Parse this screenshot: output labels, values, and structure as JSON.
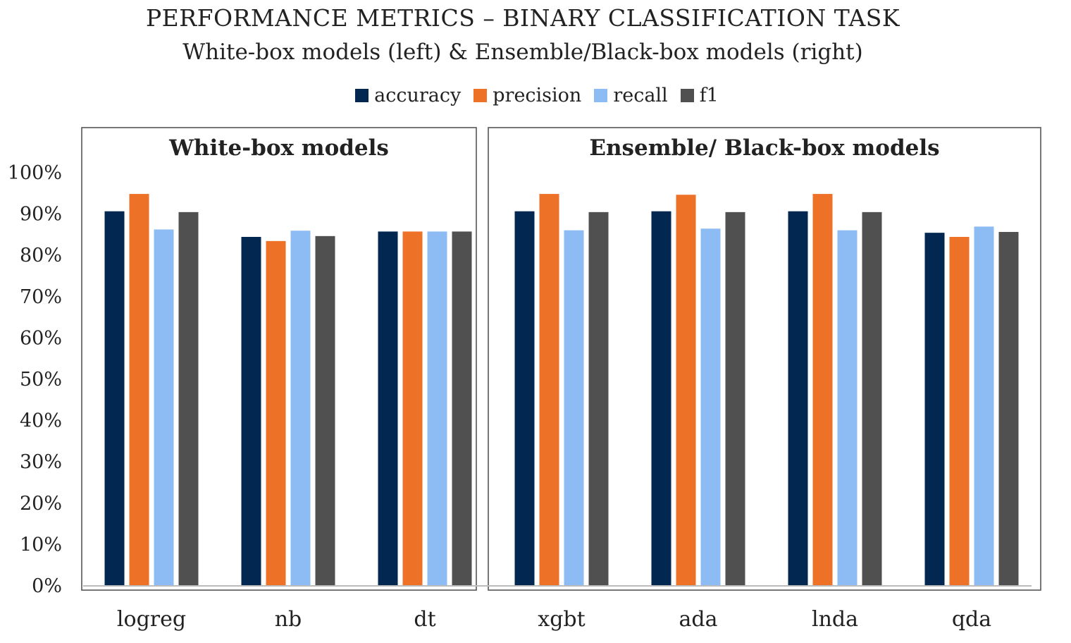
{
  "chart_data": {
    "type": "bar",
    "title": "PERFORMANCE METRICS – BINARY CLASSIFICATION TASK",
    "subtitle": "White-box models (left) & Ensemble/Black-box models (right)",
    "categories": [
      "logreg",
      "nb",
      "dt",
      "xgbt",
      "ada",
      "lnda",
      "qda"
    ],
    "groups": [
      {
        "title": "White-box models",
        "categories": [
          "logreg",
          "nb",
          "dt"
        ]
      },
      {
        "title": "Ensemble/ Black-box models",
        "categories": [
          "xgbt",
          "ada",
          "lnda",
          "qda"
        ]
      }
    ],
    "series": [
      {
        "name": "accuracy",
        "color": "#022852",
        "values": [
          0.905,
          0.843,
          0.856,
          0.905,
          0.905,
          0.905,
          0.853
        ]
      },
      {
        "name": "precision",
        "color": "#ee7128",
        "values": [
          0.947,
          0.833,
          0.856,
          0.947,
          0.945,
          0.947,
          0.843
        ]
      },
      {
        "name": "recall",
        "color": "#8dbcf5",
        "values": [
          0.861,
          0.858,
          0.856,
          0.859,
          0.863,
          0.859,
          0.868
        ]
      },
      {
        "name": "f1",
        "color": "#505050",
        "values": [
          0.903,
          0.845,
          0.856,
          0.903,
          0.903,
          0.903,
          0.855
        ]
      }
    ],
    "ylim": [
      0,
      1.0
    ],
    "yticks": [
      "0%",
      "10%",
      "20%",
      "30%",
      "40%",
      "50%",
      "60%",
      "70%",
      "80%",
      "90%",
      "100%"
    ],
    "xlabel": "",
    "ylabel": "",
    "legend": "top-center",
    "grid": false
  }
}
